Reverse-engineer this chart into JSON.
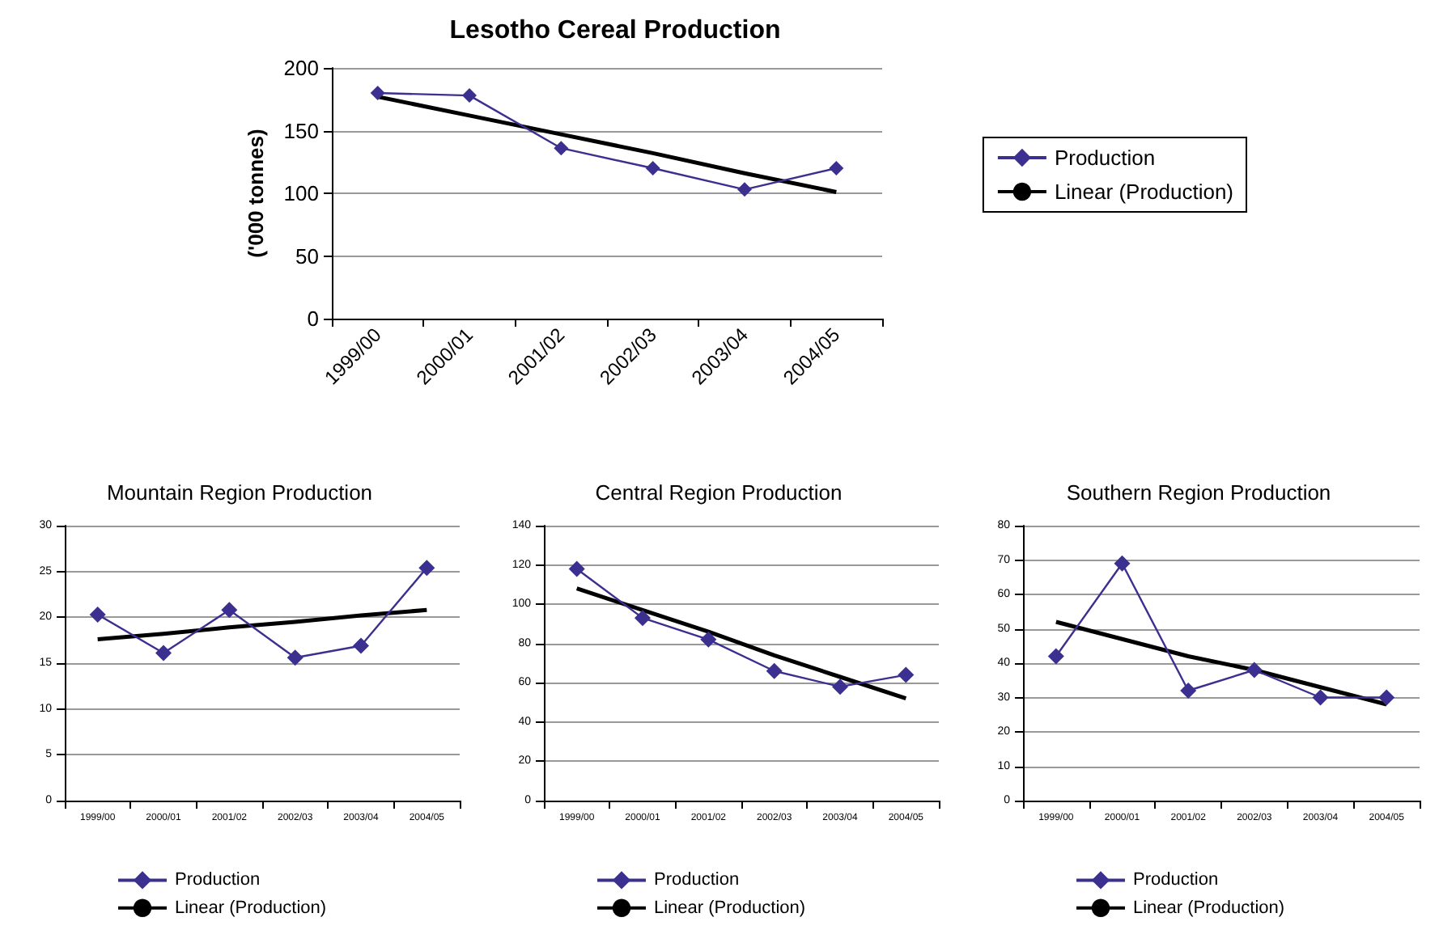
{
  "chart_data": [
    {
      "type": "line",
      "title": "Lesotho Cereal Production",
      "ylabel": "('000 tonnes)",
      "categories": [
        "1999/00",
        "2000/01",
        "2001/02",
        "2002/03",
        "2003/04",
        "2004/05"
      ],
      "series": [
        {
          "name": "Production",
          "color": "#3b2f8f",
          "marker": "diamond",
          "values": [
            180,
            178,
            136,
            120,
            103,
            120
          ]
        },
        {
          "name": "Linear (Production)",
          "color": "#000000",
          "marker": "none",
          "values": [
            177,
            162,
            147,
            132,
            116,
            101
          ]
        }
      ],
      "ylim": [
        0,
        200
      ],
      "yticks": [
        0,
        50,
        100,
        150,
        200
      ],
      "grid": "y",
      "legend": "right"
    },
    {
      "type": "line",
      "title": "Mountain Region Production",
      "categories": [
        "1999/00",
        "2000/01",
        "2001/02",
        "2002/03",
        "2003/04",
        "2004/05"
      ],
      "series": [
        {
          "name": "Production",
          "color": "#3b2f8f",
          "marker": "diamond",
          "values": [
            20.3,
            16.1,
            20.8,
            15.6,
            16.9,
            25.4
          ]
        },
        {
          "name": "Linear (Production)",
          "color": "#000000",
          "marker": "none",
          "values": [
            17.6,
            18.2,
            18.9,
            19.5,
            20.2,
            20.8
          ]
        }
      ],
      "ylim": [
        0,
        30
      ],
      "yticks": [
        0,
        5,
        10,
        15,
        20,
        25,
        30
      ],
      "grid": "y",
      "legend": "bottom"
    },
    {
      "type": "line",
      "title": "Central Region Production",
      "categories": [
        "1999/00",
        "2000/01",
        "2001/02",
        "2002/03",
        "2003/04",
        "2004/05"
      ],
      "series": [
        {
          "name": "Production",
          "color": "#3b2f8f",
          "marker": "diamond",
          "values": [
            118,
            93,
            82,
            66,
            58,
            64
          ]
        },
        {
          "name": "Linear (Production)",
          "color": "#000000",
          "marker": "none",
          "values": [
            108,
            97,
            86,
            74,
            63,
            52
          ]
        }
      ],
      "ylim": [
        0,
        140
      ],
      "yticks": [
        0,
        20,
        40,
        60,
        80,
        100,
        120,
        140
      ],
      "grid": "y",
      "legend": "bottom"
    },
    {
      "type": "line",
      "title": "Southern Region Production",
      "categories": [
        "1999/00",
        "2000/01",
        "2001/02",
        "2002/03",
        "2003/04",
        "2004/05"
      ],
      "series": [
        {
          "name": "Production",
          "color": "#3b2f8f",
          "marker": "diamond",
          "values": [
            42,
            69,
            32,
            38,
            30,
            30
          ]
        },
        {
          "name": "Linear (Production)",
          "color": "#000000",
          "marker": "none",
          "values": [
            52,
            47,
            42,
            38,
            33,
            28
          ]
        }
      ],
      "ylim": [
        0,
        80
      ],
      "yticks": [
        0,
        10,
        20,
        30,
        40,
        50,
        60,
        70,
        80
      ],
      "grid": "y",
      "legend": "bottom"
    }
  ]
}
